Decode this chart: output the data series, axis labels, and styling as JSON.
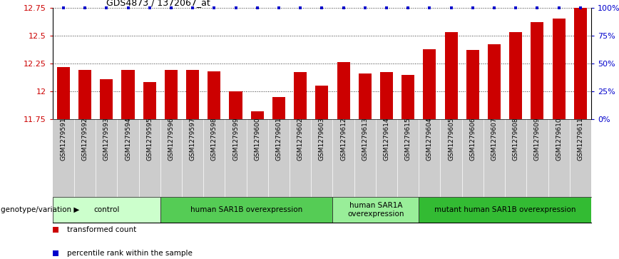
{
  "title": "GDS4873 / 1372067_at",
  "samples": [
    "GSM1279591",
    "GSM1279592",
    "GSM1279593",
    "GSM1279594",
    "GSM1279595",
    "GSM1279596",
    "GSM1279597",
    "GSM1279598",
    "GSM1279599",
    "GSM1279600",
    "GSM1279601",
    "GSM1279602",
    "GSM1279603",
    "GSM1279612",
    "GSM1279613",
    "GSM1279614",
    "GSM1279615",
    "GSM1279604",
    "GSM1279605",
    "GSM1279606",
    "GSM1279607",
    "GSM1279608",
    "GSM1279609",
    "GSM1279610",
    "GSM1279611"
  ],
  "values": [
    12.22,
    12.19,
    12.11,
    12.19,
    12.08,
    12.19,
    12.19,
    12.18,
    12.0,
    11.82,
    11.95,
    12.17,
    12.05,
    12.26,
    12.16,
    12.17,
    12.15,
    12.38,
    12.53,
    12.37,
    12.42,
    12.53,
    12.62,
    12.65,
    12.75
  ],
  "bar_color": "#cc0000",
  "dot_color": "#0000cc",
  "ylim": [
    11.75,
    12.75
  ],
  "yticks": [
    11.75,
    12.0,
    12.25,
    12.5,
    12.75
  ],
  "ytick_labels": [
    "11.75",
    "12",
    "12.25",
    "12.5",
    "12.75"
  ],
  "right_yticks": [
    0,
    25,
    50,
    75,
    100
  ],
  "right_yticklabels": [
    "0%",
    "25%",
    "50%",
    "75%",
    "100%"
  ],
  "groups": [
    {
      "label": "control",
      "start": 0,
      "end": 5,
      "color": "#ccffcc"
    },
    {
      "label": "human SAR1B overexpression",
      "start": 5,
      "end": 13,
      "color": "#55cc55"
    },
    {
      "label": "human SAR1A\noverexpression",
      "start": 13,
      "end": 17,
      "color": "#99ee99"
    },
    {
      "label": "mutant human SAR1B overexpression",
      "start": 17,
      "end": 25,
      "color": "#33bb33"
    }
  ],
  "genotype_label": "genotype/variation",
  "legend_items": [
    {
      "color": "#cc0000",
      "label": "transformed count"
    },
    {
      "color": "#0000cc",
      "label": "percentile rank within the sample"
    }
  ],
  "background_color": "#ffffff",
  "tick_bg_color": "#cccccc"
}
